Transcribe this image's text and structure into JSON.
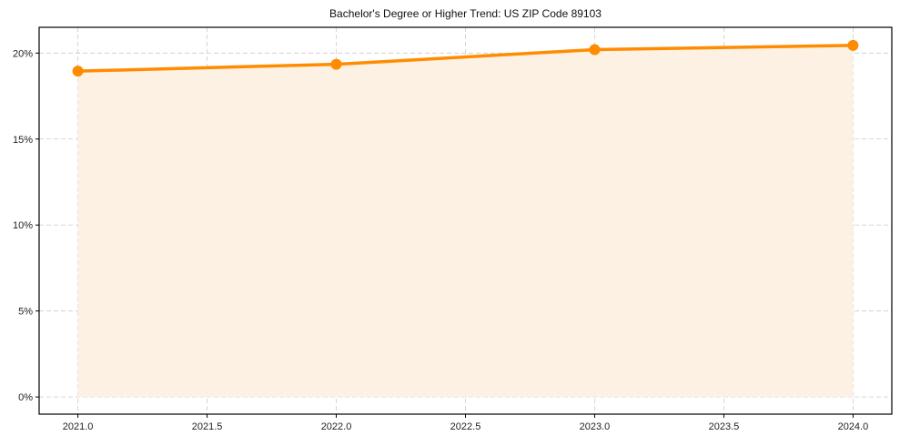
{
  "chart_data": {
    "type": "line",
    "title": "Bachelor's Degree or Higher Trend: US ZIP Code 89103",
    "xlabel": "",
    "ylabel": "",
    "x": [
      2021,
      2022,
      2023,
      2024
    ],
    "series": [
      {
        "name": "Bachelor's Degree or Higher",
        "values": [
          18.95,
          19.35,
          20.2,
          20.45
        ],
        "color": "#ff8c00",
        "fill_color": "#fdf0e2",
        "marker": "circle"
      }
    ],
    "xticks": [
      "2021.0",
      "2021.5",
      "2022.0",
      "2022.5",
      "2023.0",
      "2023.5",
      "2024.0"
    ],
    "xtick_values": [
      2021.0,
      2021.5,
      2022.0,
      2022.5,
      2023.0,
      2023.5,
      2024.0
    ],
    "yticks": [
      "0%",
      "5%",
      "10%",
      "15%",
      "20%"
    ],
    "ytick_values": [
      0,
      5,
      10,
      15,
      20
    ],
    "xlim": [
      2020.85,
      2024.15
    ],
    "ylim": [
      -1.0,
      21.5
    ],
    "grid": true,
    "grid_style": "dashed",
    "legend": null
  }
}
